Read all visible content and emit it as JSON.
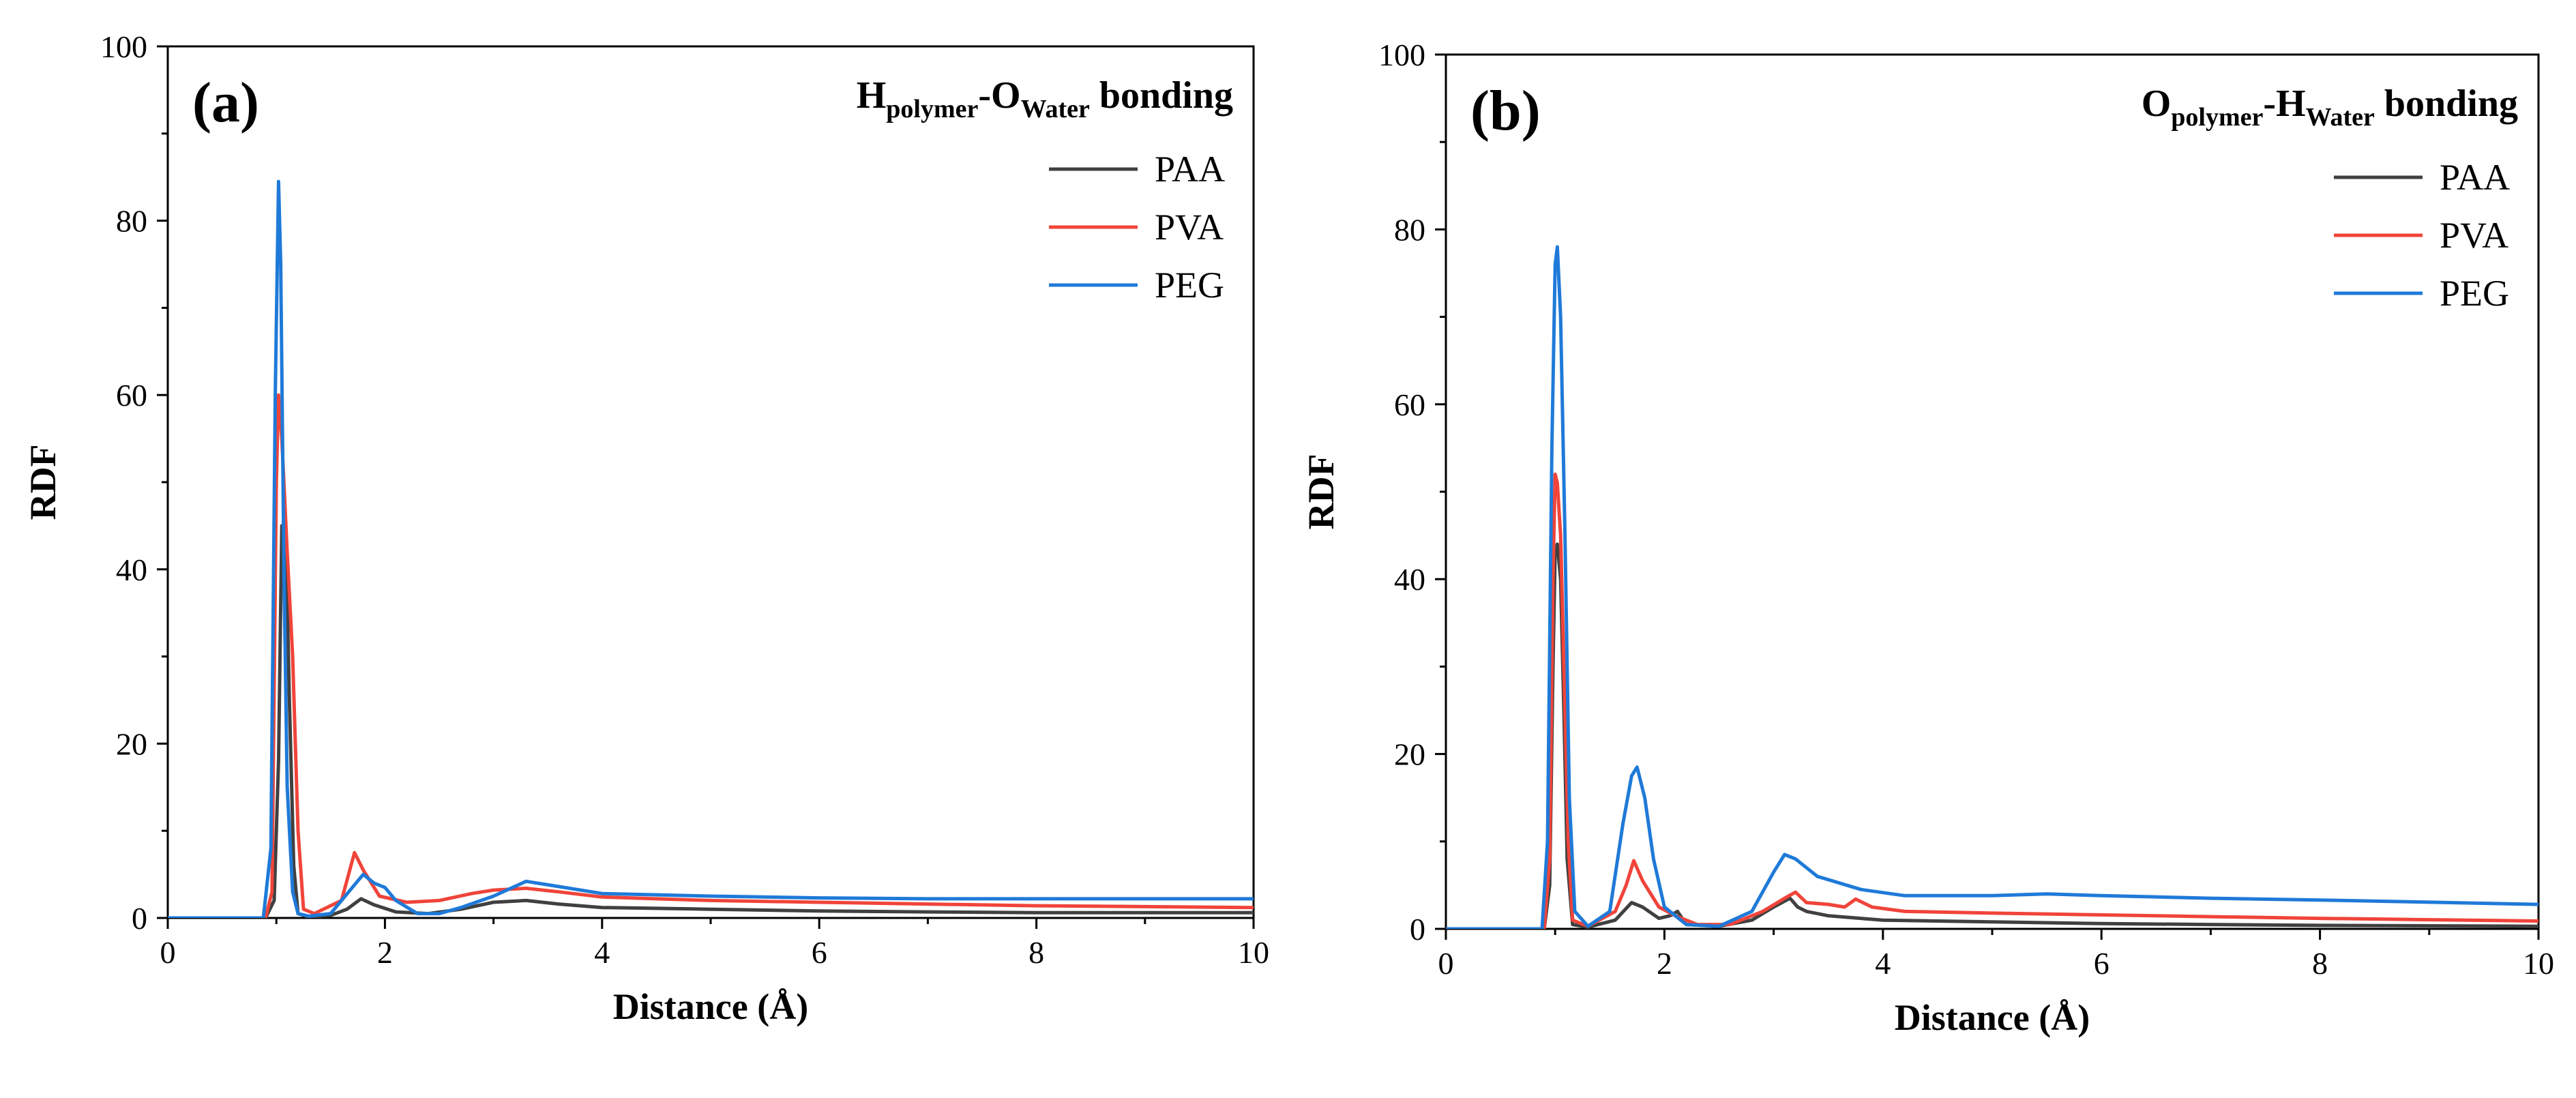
{
  "chart_data": [
    {
      "panel_label": "(a)",
      "type": "line",
      "title_main": "H",
      "title_sub1": "polymer",
      "title_mid": "-O",
      "title_sub2": "Water",
      "title_end": " bonding",
      "xlabel": "Distance (Å)",
      "ylabel": "RDF",
      "xlim": [
        0,
        10
      ],
      "ylim": [
        0,
        100
      ],
      "xticks": [
        0,
        2,
        4,
        6,
        8,
        10
      ],
      "yticks": [
        0,
        20,
        40,
        60,
        80,
        100
      ],
      "legend_position": "top-right",
      "series": [
        {
          "name": "PAA",
          "color": "#404040",
          "x": [
            0,
            0.9,
            0.98,
            1.02,
            1.05,
            1.09,
            1.12,
            1.16,
            1.2,
            1.3,
            1.5,
            1.65,
            1.78,
            1.9,
            2.1,
            2.4,
            2.7,
            3.0,
            3.3,
            3.6,
            4.0,
            5,
            6,
            7,
            8,
            10
          ],
          "y": [
            0,
            0,
            2,
            18,
            45,
            42,
            25,
            6,
            0.5,
            0.1,
            0.3,
            1.0,
            2.2,
            1.5,
            0.7,
            0.5,
            1.0,
            1.8,
            2.0,
            1.6,
            1.2,
            1.0,
            0.8,
            0.7,
            0.6,
            0.6
          ]
        },
        {
          "name": "PVA",
          "color": "#f0443a",
          "x": [
            0,
            0.9,
            0.96,
            1.0,
            1.02,
            1.05,
            1.1,
            1.15,
            1.2,
            1.25,
            1.35,
            1.6,
            1.72,
            1.8,
            1.95,
            2.2,
            2.5,
            2.8,
            3.0,
            3.3,
            3.6,
            4.0,
            5,
            6,
            7,
            8,
            10
          ],
          "y": [
            0,
            0,
            3,
            50,
            60,
            55,
            42,
            30,
            10,
            1,
            0.5,
            2.0,
            7.5,
            5.5,
            2.5,
            1.8,
            2.0,
            2.8,
            3.2,
            3.4,
            3.0,
            2.4,
            2.0,
            1.8,
            1.6,
            1.4,
            1.2
          ]
        },
        {
          "name": "PEG",
          "color": "#1f7ad8",
          "x": [
            0,
            0.88,
            0.95,
            0.99,
            1.02,
            1.04,
            1.07,
            1.1,
            1.15,
            1.2,
            1.3,
            1.5,
            1.7,
            1.8,
            1.9,
            2.0,
            2.1,
            2.3,
            2.5,
            2.7,
            3.0,
            3.3,
            3.5,
            4.0,
            5,
            6,
            7,
            8,
            10
          ],
          "y": [
            0,
            0,
            8,
            60,
            84.5,
            75,
            40,
            15,
            3,
            0.5,
            0.2,
            0.5,
            3.5,
            5.0,
            4.0,
            3.5,
            2.0,
            0.5,
            0.5,
            1.2,
            2.5,
            4.2,
            3.8,
            2.8,
            2.5,
            2.3,
            2.2,
            2.2,
            2.2
          ]
        }
      ]
    },
    {
      "panel_label": "(b)",
      "type": "line",
      "title_main": "O",
      "title_sub1": "polymer",
      "title_mid": "-H",
      "title_sub2": "Water",
      "title_end": " bonding",
      "xlabel": "Distance (Å)",
      "ylabel": "RDF",
      "xlim": [
        0,
        10
      ],
      "ylim": [
        0,
        100
      ],
      "xticks": [
        0,
        2,
        4,
        6,
        8,
        10
      ],
      "yticks": [
        0,
        20,
        40,
        60,
        80,
        100
      ],
      "legend_position": "top-right",
      "series": [
        {
          "name": "PAA",
          "color": "#404040",
          "x": [
            0,
            0.9,
            0.95,
            0.98,
            1.0,
            1.02,
            1.05,
            1.08,
            1.11,
            1.16,
            1.3,
            1.55,
            1.7,
            1.8,
            1.95,
            2.05,
            2.12,
            2.2,
            2.5,
            2.8,
            3.0,
            3.15,
            3.22,
            3.3,
            3.5,
            4.0,
            5,
            6,
            7,
            8,
            10
          ],
          "y": [
            0,
            0,
            5,
            30,
            43,
            44,
            40,
            25,
            8,
            0.5,
            0.2,
            1.0,
            3.0,
            2.5,
            1.2,
            1.5,
            2.0,
            0.5,
            0.3,
            1.0,
            2.5,
            3.5,
            2.5,
            2.0,
            1.5,
            1.0,
            0.8,
            0.6,
            0.5,
            0.4,
            0.3
          ]
        },
        {
          "name": "PVA",
          "color": "#f0443a",
          "x": [
            0,
            0.9,
            0.95,
            0.98,
            1.0,
            1.02,
            1.05,
            1.08,
            1.12,
            1.16,
            1.3,
            1.55,
            1.65,
            1.72,
            1.8,
            1.95,
            2.1,
            2.3,
            2.6,
            2.9,
            3.1,
            3.2,
            3.3,
            3.5,
            3.65,
            3.75,
            3.9,
            4.2,
            5,
            6,
            7,
            8,
            10
          ],
          "y": [
            0,
            0,
            8,
            40,
            52,
            51,
            45,
            30,
            10,
            1,
            0.3,
            2.0,
            5.0,
            7.8,
            5.5,
            2.5,
            1.5,
            0.5,
            0.5,
            2.0,
            3.5,
            4.2,
            3.0,
            2.8,
            2.5,
            3.4,
            2.5,
            2.0,
            1.8,
            1.6,
            1.4,
            1.2,
            0.9
          ]
        },
        {
          "name": "PEG",
          "color": "#1f7ad8",
          "x": [
            0,
            0.88,
            0.93,
            0.97,
            1.0,
            1.02,
            1.05,
            1.09,
            1.13,
            1.18,
            1.3,
            1.5,
            1.62,
            1.7,
            1.75,
            1.82,
            1.9,
            2.0,
            2.2,
            2.5,
            2.8,
            3.0,
            3.1,
            3.2,
            3.4,
            3.8,
            4.2,
            5,
            5.5,
            6,
            7,
            8,
            10
          ],
          "y": [
            0,
            0,
            10,
            55,
            76,
            78,
            70,
            45,
            15,
            2,
            0.3,
            2.0,
            12,
            17.5,
            18.5,
            15,
            8,
            2.5,
            0.5,
            0.3,
            2.0,
            6.5,
            8.5,
            8.0,
            6.0,
            4.5,
            3.8,
            3.8,
            4.0,
            3.8,
            3.5,
            3.3,
            2.8
          ]
        }
      ]
    }
  ]
}
